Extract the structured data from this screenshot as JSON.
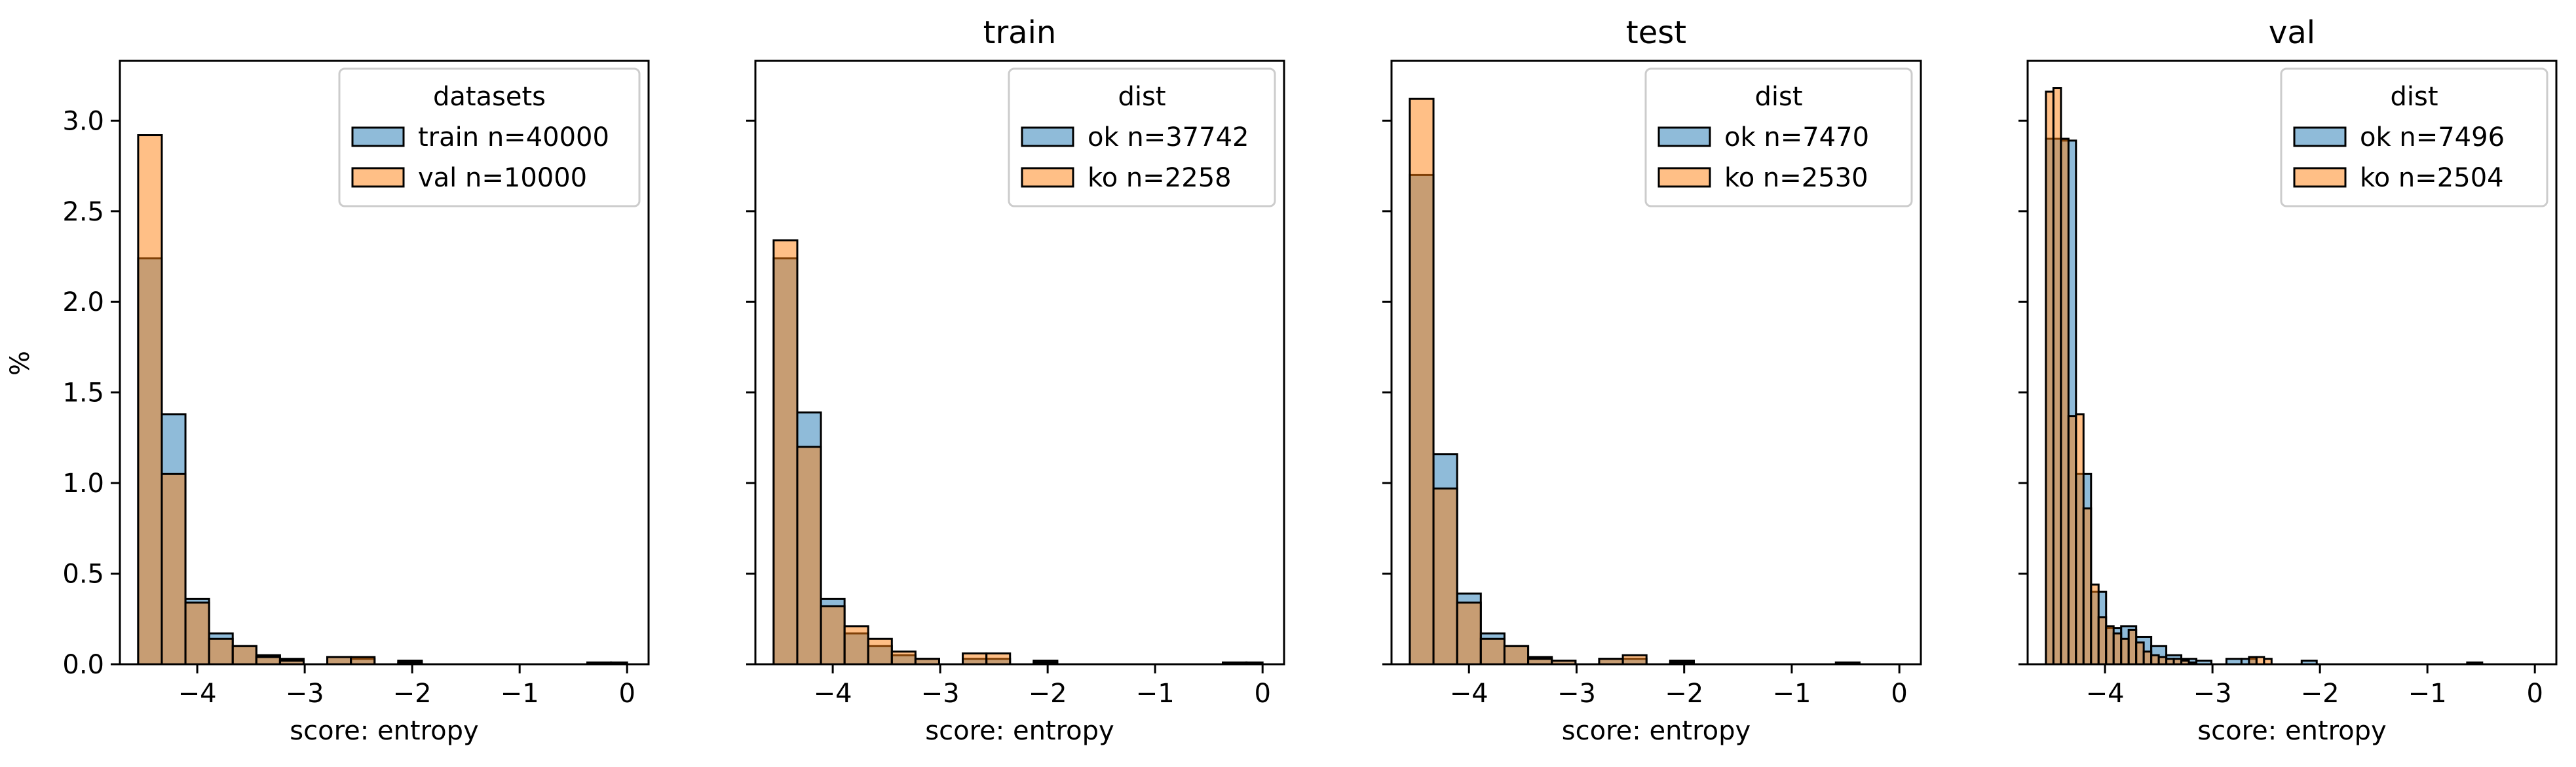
{
  "figure": {
    "ylabel": "%",
    "yticks": [
      "0.0",
      "0.5",
      "1.0",
      "1.5",
      "2.0",
      "2.5",
      "3.0"
    ],
    "colors": {
      "blue": "#1f77b4",
      "orange": "#ff7f0e",
      "edge": "#000000"
    }
  },
  "chart_data": [
    {
      "type": "bar",
      "title": "",
      "xlabel": "score: entropy",
      "ylabel": "%",
      "xlim": [
        -4.72,
        0.2
      ],
      "ylim": [
        0,
        3.33
      ],
      "xticks": [
        -4,
        -3,
        -2,
        -1,
        0
      ],
      "xtick_labels": [
        "−4",
        "−3",
        "−2",
        "−1",
        "0"
      ],
      "legend": {
        "title": "datasets",
        "position": "upper right"
      },
      "series": [
        {
          "name": "train n=40000",
          "color": "#1f77b4",
          "alpha": 0.5,
          "bins": [
            [
              -4.55,
              -4.33,
              2.24
            ],
            [
              -4.33,
              -4.11,
              1.38
            ],
            [
              -4.11,
              -3.89,
              0.36
            ],
            [
              -3.89,
              -3.67,
              0.17
            ],
            [
              -3.67,
              -3.45,
              0.1
            ],
            [
              -3.45,
              -3.23,
              0.05
            ],
            [
              -3.23,
              -3.01,
              0.03
            ],
            [
              -2.79,
              -2.57,
              0.04
            ],
            [
              -2.57,
              -2.35,
              0.03
            ],
            [
              -2.13,
              -1.91,
              0.02
            ],
            [
              -0.37,
              -0.15,
              0.01
            ],
            [
              -0.15,
              0.0,
              0.01
            ]
          ]
        },
        {
          "name": "val n=10000",
          "color": "#ff7f0e",
          "alpha": 0.5,
          "bins": [
            [
              -4.55,
              -4.33,
              2.92
            ],
            [
              -4.33,
              -4.11,
              1.05
            ],
            [
              -4.11,
              -3.89,
              0.34
            ],
            [
              -3.89,
              -3.67,
              0.14
            ],
            [
              -3.67,
              -3.45,
              0.1
            ],
            [
              -3.45,
              -3.23,
              0.04
            ],
            [
              -3.23,
              -3.01,
              0.02
            ],
            [
              -2.79,
              -2.57,
              0.04
            ],
            [
              -2.57,
              -2.35,
              0.04
            ],
            [
              -2.13,
              -1.91,
              0.01
            ]
          ]
        }
      ]
    },
    {
      "type": "bar",
      "title": "train",
      "xlabel": "score: entropy",
      "ylabel": "",
      "xlim": [
        -4.72,
        0.2
      ],
      "ylim": [
        0,
        3.33
      ],
      "xticks": [
        -4,
        -3,
        -2,
        -1,
        0
      ],
      "xtick_labels": [
        "−4",
        "−3",
        "−2",
        "−1",
        "0"
      ],
      "legend": {
        "title": "dist",
        "position": "upper right"
      },
      "series": [
        {
          "name": "ok n=37742",
          "color": "#1f77b4",
          "alpha": 0.5,
          "bins": [
            [
              -4.55,
              -4.33,
              2.24
            ],
            [
              -4.33,
              -4.11,
              1.39
            ],
            [
              -4.11,
              -3.89,
              0.36
            ],
            [
              -3.89,
              -3.67,
              0.17
            ],
            [
              -3.67,
              -3.45,
              0.1
            ],
            [
              -3.45,
              -3.23,
              0.05
            ],
            [
              -3.23,
              -3.01,
              0.03
            ],
            [
              -2.79,
              -2.57,
              0.03
            ],
            [
              -2.57,
              -2.35,
              0.03
            ],
            [
              -2.13,
              -1.91,
              0.02
            ],
            [
              -0.37,
              -0.15,
              0.01
            ],
            [
              -0.15,
              0.0,
              0.01
            ]
          ]
        },
        {
          "name": "ko n=2258",
          "color": "#ff7f0e",
          "alpha": 0.5,
          "bins": [
            [
              -4.55,
              -4.33,
              2.34
            ],
            [
              -4.33,
              -4.11,
              1.2
            ],
            [
              -4.11,
              -3.89,
              0.32
            ],
            [
              -3.89,
              -3.67,
              0.21
            ],
            [
              -3.67,
              -3.45,
              0.14
            ],
            [
              -3.45,
              -3.23,
              0.07
            ],
            [
              -3.23,
              -3.01,
              0.03
            ],
            [
              -2.79,
              -2.57,
              0.06
            ],
            [
              -2.57,
              -2.35,
              0.06
            ],
            [
              -2.13,
              -1.91,
              0.01
            ]
          ]
        }
      ]
    },
    {
      "type": "bar",
      "title": "test",
      "xlabel": "score: entropy",
      "ylabel": "",
      "xlim": [
        -4.72,
        0.2
      ],
      "ylim": [
        0,
        3.33
      ],
      "xticks": [
        -4,
        -3,
        -2,
        -1,
        0
      ],
      "xtick_labels": [
        "−4",
        "−3",
        "−2",
        "−1",
        "0"
      ],
      "legend": {
        "title": "dist",
        "position": "upper right"
      },
      "series": [
        {
          "name": "ok n=7470",
          "color": "#1f77b4",
          "alpha": 0.5,
          "bins": [
            [
              -4.55,
              -4.33,
              2.7
            ],
            [
              -4.33,
              -4.11,
              1.16
            ],
            [
              -4.11,
              -3.89,
              0.39
            ],
            [
              -3.89,
              -3.67,
              0.17
            ],
            [
              -3.67,
              -3.45,
              0.1
            ],
            [
              -3.45,
              -3.23,
              0.04
            ],
            [
              -3.23,
              -3.01,
              0.02
            ],
            [
              -2.79,
              -2.57,
              0.03
            ],
            [
              -2.57,
              -2.35,
              0.03
            ],
            [
              -2.13,
              -1.91,
              0.02
            ],
            [
              -0.59,
              -0.37,
              0.01
            ]
          ]
        },
        {
          "name": "ko n=2530",
          "color": "#ff7f0e",
          "alpha": 0.5,
          "bins": [
            [
              -4.55,
              -4.33,
              3.12
            ],
            [
              -4.33,
              -4.11,
              0.97
            ],
            [
              -4.11,
              -3.89,
              0.34
            ],
            [
              -3.89,
              -3.67,
              0.14
            ],
            [
              -3.67,
              -3.45,
              0.1
            ],
            [
              -3.45,
              -3.23,
              0.03
            ],
            [
              -3.23,
              -3.01,
              0.02
            ],
            [
              -2.79,
              -2.57,
              0.03
            ],
            [
              -2.57,
              -2.35,
              0.05
            ],
            [
              -2.13,
              -1.91,
              0.01
            ]
          ]
        }
      ]
    },
    {
      "type": "bar",
      "title": "val",
      "xlabel": "score: entropy",
      "ylabel": "",
      "xlim": [
        -4.72,
        0.2
      ],
      "ylim": [
        0,
        3.33
      ],
      "xticks": [
        -4,
        -3,
        -2,
        -1,
        0
      ],
      "xtick_labels": [
        "−4",
        "−3",
        "−2",
        "−1",
        "0"
      ],
      "legend": {
        "title": "dist",
        "position": "upper right"
      },
      "series": [
        {
          "name": "ok n=7496",
          "color": "#1f77b4",
          "alpha": 0.5,
          "bins": [
            [
              -4.55,
              -4.41,
              2.9
            ],
            [
              -4.41,
              -4.27,
              2.89
            ],
            [
              -4.27,
              -4.13,
              1.05
            ],
            [
              -4.13,
              -3.99,
              0.4
            ],
            [
              -3.99,
              -3.85,
              0.2
            ],
            [
              -3.85,
              -3.71,
              0.21
            ],
            [
              -3.71,
              -3.57,
              0.15
            ],
            [
              -3.57,
              -3.43,
              0.1
            ],
            [
              -3.43,
              -3.29,
              0.05
            ],
            [
              -3.29,
              -3.15,
              0.03
            ],
            [
              -3.15,
              -3.01,
              0.02
            ],
            [
              -2.87,
              -2.73,
              0.03
            ],
            [
              -2.73,
              -2.59,
              0.03
            ],
            [
              -2.17,
              -2.03,
              0.02
            ],
            [
              -0.63,
              -0.49,
              0.01
            ]
          ]
        },
        {
          "name": "ko n=2504",
          "color": "#ff7f0e",
          "alpha": 0.5,
          "bins": [
            [
              -4.55,
              -4.48,
              3.16
            ],
            [
              -4.48,
              -4.41,
              3.18
            ],
            [
              -4.41,
              -4.34,
              2.9
            ],
            [
              -4.34,
              -4.27,
              1.37
            ],
            [
              -4.27,
              -4.2,
              1.38
            ],
            [
              -4.2,
              -4.13,
              0.86
            ],
            [
              -4.13,
              -4.06,
              0.44
            ],
            [
              -4.06,
              -3.99,
              0.26
            ],
            [
              -3.99,
              -3.92,
              0.21
            ],
            [
              -3.92,
              -3.85,
              0.17
            ],
            [
              -3.85,
              -3.78,
              0.14
            ],
            [
              -3.78,
              -3.71,
              0.19
            ],
            [
              -3.71,
              -3.64,
              0.12
            ],
            [
              -3.64,
              -3.57,
              0.07
            ],
            [
              -3.57,
              -3.5,
              0.05
            ],
            [
              -3.5,
              -3.43,
              0.04
            ],
            [
              -3.43,
              -3.36,
              0.03
            ],
            [
              -3.36,
              -3.29,
              0.03
            ],
            [
              -3.29,
              -3.22,
              0.02
            ],
            [
              -3.22,
              -3.15,
              0.01
            ],
            [
              -2.66,
              -2.59,
              0.04
            ],
            [
              -2.59,
              -2.52,
              0.04
            ],
            [
              -2.52,
              -2.45,
              0.03
            ]
          ]
        }
      ]
    }
  ]
}
